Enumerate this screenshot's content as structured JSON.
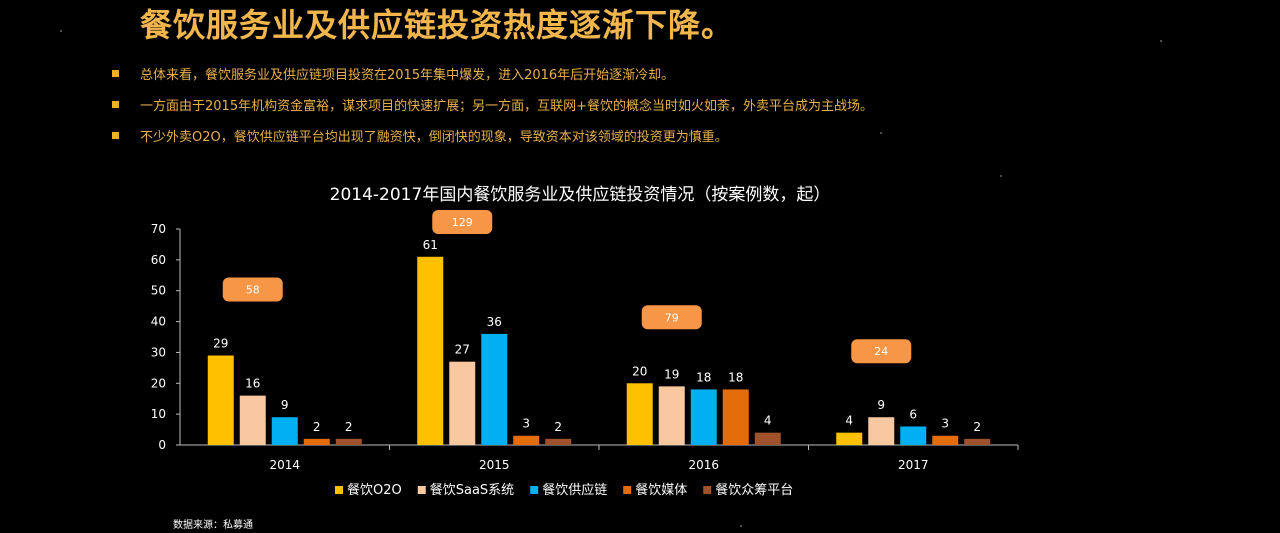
{
  "header": {
    "title": "餐饮服务业及供应链投资热度逐渐下降。"
  },
  "bullets": [
    "总体来看，餐饮服务业及供应链项目投资在2015年集中爆发，进入2016年后开始逐渐冷却。",
    "一方面由于2015年机构资金富裕，谋求项目的快速扩展；另一方面，互联网+餐饮的概念当时如火如荼，外卖平台成为主战场。",
    "不少外卖O2O，餐饮供应链平台均出现了融资快，倒闭快的现象，导致资本对该领域的投资更为慎重。"
  ],
  "source": "数据来源：私募通",
  "chart_data": {
    "type": "bar",
    "title": "2014-2017年国内餐饮服务业及供应链投资情况（按案例数，起）",
    "categories": [
      "2014",
      "2015",
      "2016",
      "2017"
    ],
    "ylim": [
      0,
      70
    ],
    "yticks": [
      0,
      10,
      20,
      30,
      40,
      50,
      60,
      70
    ],
    "series": [
      {
        "name": "餐饮O2O",
        "color": "#ffc000",
        "values": [
          29,
          61,
          20,
          4
        ]
      },
      {
        "name": "餐饮SaaS系统",
        "color": "#f8c8a0",
        "values": [
          16,
          27,
          19,
          9
        ]
      },
      {
        "name": "餐饮供应链",
        "color": "#00b0f0",
        "values": [
          9,
          36,
          18,
          6
        ]
      },
      {
        "name": "餐饮媒体",
        "color": "#e46c0a",
        "values": [
          2,
          3,
          18,
          3
        ]
      },
      {
        "name": "餐饮众筹平台",
        "color": "#a0522d",
        "values": [
          2,
          2,
          4,
          2
        ]
      }
    ],
    "totals": [
      "58",
      "129",
      "79",
      "24"
    ],
    "legend_position": "bottom"
  }
}
